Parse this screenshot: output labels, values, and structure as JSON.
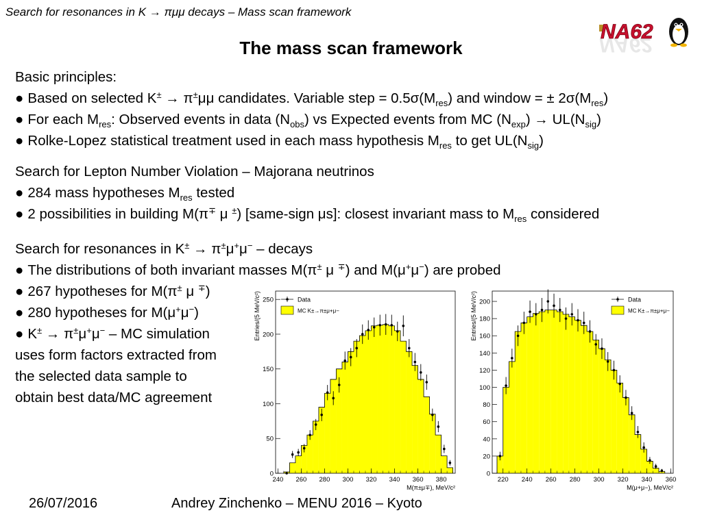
{
  "header": {
    "title": "Search for resonances in K → πμμ decays – Mass scan framework",
    "logo_text": "NA62"
  },
  "title": "The mass scan framework",
  "sections": {
    "basic": {
      "heading": "Basic principles:",
      "b1": {
        "a": "Based on selected K",
        "b": "±",
        "c": " → π",
        "d": "±",
        "e": "μμ candidates. Variable step = 0.5σ(M",
        "f": "res",
        "g": ") and window = ± 2σ(M",
        "h": "res",
        "i": ")"
      },
      "b2": {
        "a": "For each M",
        "b": "res",
        "c": ": Observed events in data (N",
        "d": "obs",
        "e": ") vs Expected events from MC (N",
        "f": "exp",
        "g": ") → UL(N",
        "h": "sig",
        "i": ")"
      },
      "b3": {
        "a": "Rolke-Lopez statistical treatment used in each mass hypothesis M",
        "b": "res",
        "c": " to get UL(N",
        "d": "sig",
        "e": ")"
      }
    },
    "lnv": {
      "heading": "Search for Lepton Number Violation – Majorana neutrinos",
      "b1": {
        "a": "284 mass hypotheses M",
        "b": "res",
        "c": " tested"
      },
      "b2": {
        "a": "2 possibilities in building M(π",
        "b": "∓",
        "c": " μ ",
        "d": "±",
        "e": ") [same-sign μs]: closest invariant mass to M",
        "f": "res",
        "g": " considered"
      }
    },
    "res": {
      "heading": {
        "a": "Search for resonances in K",
        "b": "±",
        "c": " → π",
        "d": "±",
        "e": "μ",
        "f": "+",
        "g": "μ",
        "h": "−",
        "i": " – decays"
      },
      "b1": {
        "a": "The distributions of both invariant masses M(π",
        "b": "±",
        "c": " μ ",
        "d": "∓",
        "e": ") and M(μ",
        "f": "+",
        "g": "μ",
        "h": "−",
        "i": ") are probed"
      },
      "b2": {
        "a": "267 hypotheses for M(π",
        "b": "±",
        "c": " μ ",
        "d": "∓",
        "e": ")"
      },
      "b3": {
        "a": "280 hypotheses for M(μ",
        "b": "+",
        "c": "μ",
        "d": "−",
        "e": ")"
      },
      "b4": {
        "a": "K",
        "b": "±",
        "c": " → π",
        "d": "±",
        "e": "μ",
        "f": "+",
        "g": "μ",
        "h": "−",
        "i": " – MC simulation"
      },
      "c1": "uses form factors extracted from",
      "c2": "the selected data sample to",
      "c3": "obtain best data/MC agreement"
    }
  },
  "footer": {
    "date": "26/07/2016",
    "author": "Andrey Zinchenko – MENU 2016 – Kyoto"
  },
  "bullet_char": "●",
  "colors": {
    "mc_fill": "#ffff00",
    "mc_line": "#000000",
    "data_marker": "#000000"
  },
  "chart_data": [
    {
      "type": "bar",
      "ylabel": "Entries/(5 MeV/c²)",
      "xlabel": "M(π±μ∓), MeV/c²",
      "xlim": [
        238,
        392
      ],
      "ylim": [
        0,
        262
      ],
      "xticks": [
        240,
        260,
        280,
        300,
        320,
        340,
        360,
        380
      ],
      "yticks": [
        0,
        50,
        100,
        150,
        200,
        250
      ],
      "legend": {
        "placement": "top-left",
        "entries": [
          "Data",
          "MC K±→π±μ+μ−"
        ]
      },
      "bin_edges": [
        245,
        250,
        255,
        260,
        265,
        270,
        275,
        280,
        285,
        290,
        295,
        300,
        305,
        310,
        315,
        320,
        325,
        330,
        335,
        340,
        345,
        350,
        355,
        360,
        365,
        370,
        375,
        380,
        385,
        390
      ],
      "series": [
        {
          "name": "MC K±→π±μ+μ−",
          "kind": "histogram",
          "values": [
            2,
            15,
            25,
            40,
            55,
            75,
            95,
            115,
            135,
            150,
            160,
            175,
            190,
            198,
            205,
            212,
            213,
            214,
            212,
            205,
            190,
            175,
            155,
            135,
            110,
            85,
            55,
            25,
            8
          ]
        },
        {
          "name": "Data",
          "kind": "points",
          "values": [
            0,
            27,
            30,
            36,
            55,
            70,
            84,
            116,
            108,
            127,
            162,
            167,
            180,
            200,
            206,
            210,
            213,
            214,
            213,
            204,
            212,
            180,
            160,
            145,
            131,
            84,
            67,
            35,
            15
          ],
          "errors": [
            0,
            5,
            5,
            6,
            7,
            8,
            9,
            11,
            10,
            11,
            13,
            13,
            13,
            14,
            14,
            14,
            15,
            15,
            15,
            14,
            15,
            13,
            13,
            12,
            11,
            9,
            8,
            6,
            4
          ]
        }
      ]
    },
    {
      "type": "bar",
      "ylabel": "Entries/(5 MeV/c²)",
      "xlabel": "M(μ+μ−), MeV/c²",
      "xlim": [
        211,
        362
      ],
      "ylim": [
        0,
        212
      ],
      "xticks": [
        220,
        240,
        260,
        280,
        300,
        320,
        340,
        360
      ],
      "yticks": [
        0,
        20,
        40,
        60,
        80,
        100,
        120,
        140,
        160,
        180,
        200
      ],
      "legend": {
        "placement": "top-right",
        "entries": [
          "Data",
          "MC K±→π±μ+μ−"
        ]
      },
      "bin_edges": [
        215,
        220,
        225,
        230,
        235,
        240,
        245,
        250,
        255,
        260,
        265,
        270,
        275,
        280,
        285,
        290,
        295,
        300,
        305,
        310,
        315,
        320,
        325,
        330,
        335,
        340,
        345,
        350,
        355
      ],
      "series": [
        {
          "name": "MC K±→π±μ+μ−",
          "kind": "histogram",
          "values": [
            20,
            100,
            130,
            165,
            175,
            182,
            186,
            188,
            190,
            190,
            188,
            185,
            182,
            178,
            172,
            165,
            155,
            145,
            132,
            120,
            105,
            88,
            68,
            45,
            28,
            14,
            6,
            2
          ]
        },
        {
          "name": "Data",
          "kind": "points",
          "values": [
            20,
            102,
            134,
            160,
            175,
            188,
            185,
            190,
            200,
            195,
            190,
            180,
            185,
            178,
            175,
            165,
            150,
            145,
            130,
            120,
            104,
            88,
            70,
            48,
            30,
            15,
            8,
            3
          ],
          "errors": [
            5,
            10,
            11,
            12,
            13,
            13,
            13,
            14,
            14,
            14,
            14,
            13,
            13,
            13,
            13,
            13,
            12,
            12,
            11,
            11,
            10,
            9,
            8,
            7,
            6,
            4,
            3,
            2
          ]
        }
      ]
    }
  ]
}
